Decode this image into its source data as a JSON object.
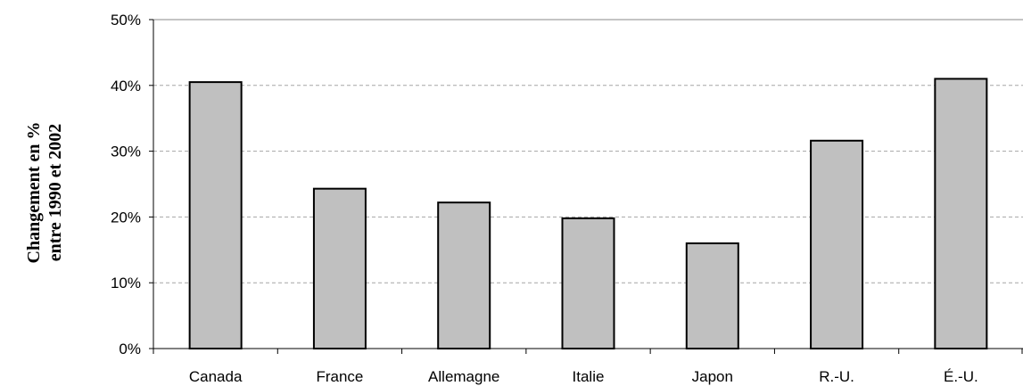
{
  "chart_data": {
    "type": "bar",
    "categories": [
      "Canada",
      "France",
      "Allemagne",
      "Italie",
      "Japon",
      "R.-U.",
      "É.-U."
    ],
    "values": [
      40.5,
      24.3,
      22.2,
      19.8,
      16.0,
      31.6,
      41.0
    ],
    "ylabel_lines": [
      "Changement en %",
      "entre 1990 et 2002"
    ],
    "ylim": [
      0,
      50
    ],
    "yticks": [
      0,
      10,
      20,
      30,
      40,
      50
    ],
    "ytick_labels": [
      "0%",
      "10%",
      "20%",
      "30%",
      "40%",
      "50%"
    ],
    "grid": true,
    "legend": false,
    "colors": {
      "bar_fill": "#c0c0c0",
      "bar_stroke": "#000000",
      "grid": "#a6a6a6"
    }
  }
}
